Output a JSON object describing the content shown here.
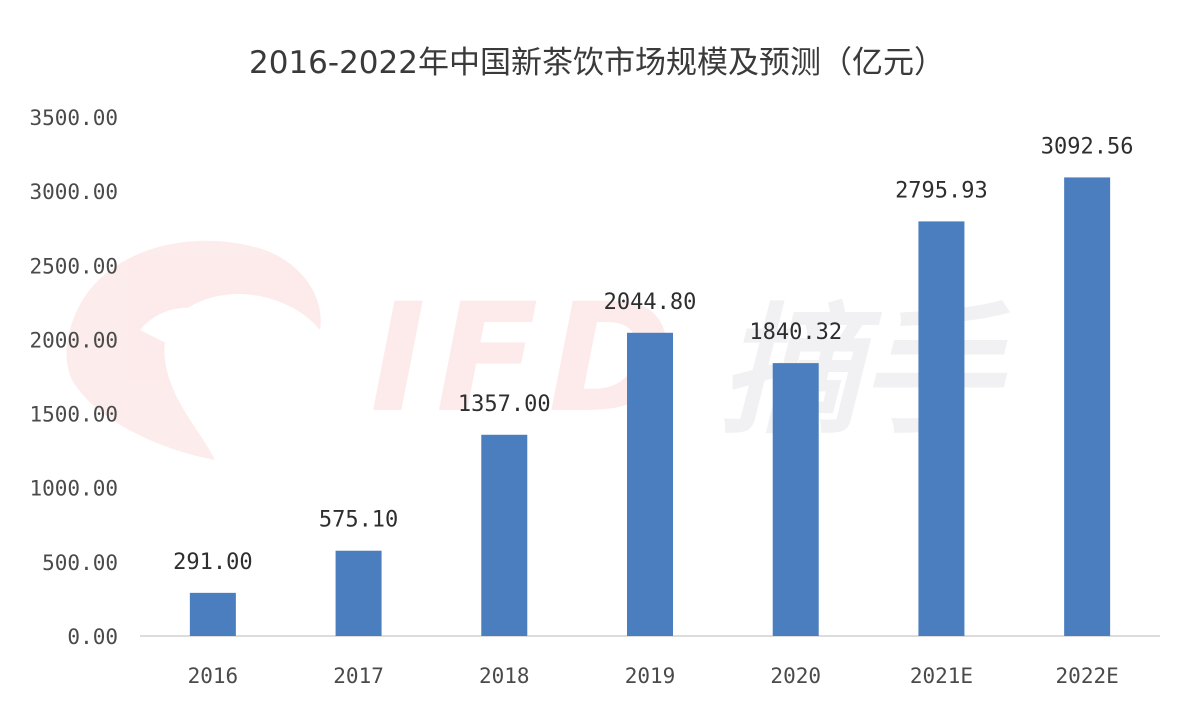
{
  "chart_data": {
    "type": "bar",
    "title": "2016-2022年中国新茶饮市场规模及预测（亿元）",
    "categories": [
      "2016",
      "2017",
      "2018",
      "2019",
      "2020",
      "2021E",
      "2022E"
    ],
    "values": [
      291.0,
      575.1,
      1357.0,
      2044.8,
      1840.32,
      2795.93,
      3092.56
    ],
    "data_labels": [
      "291.00",
      "575.10",
      "1357.00",
      "2044.80",
      "1840.32",
      "2795.93",
      "3092.56"
    ],
    "y_ticks": [
      0,
      500,
      1000,
      1500,
      2000,
      2500,
      3000,
      3500
    ],
    "y_tick_labels": [
      "0.00",
      "500.00",
      "1000.00",
      "1500.00",
      "2000.00",
      "2500.00",
      "3000.00",
      "3500.00"
    ],
    "ylim": [
      0,
      3500
    ],
    "xlabel": "",
    "ylabel": "",
    "grid": false,
    "legend": "none",
    "bar_color": "#4a7ebe"
  },
  "watermark": {
    "logo_text": "IFD",
    "brand_text": "摘手",
    "color": "#f26a6a",
    "icon": "eagle-head-icon"
  }
}
